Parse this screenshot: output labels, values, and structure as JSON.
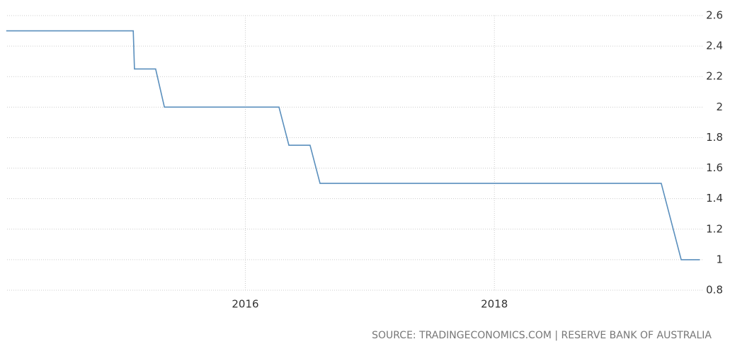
{
  "chart_data": {
    "type": "line",
    "source": "SOURCE: TRADINGECONOMICS.COM | RESERVE BANK OF AUSTRALIA",
    "x": [
      2014.08,
      2015.1,
      2015.11,
      2015.28,
      2015.35,
      2016.27,
      2016.35,
      2016.52,
      2016.6,
      2019.34,
      2019.5,
      2019.65
    ],
    "series": [
      {
        "color": "#5a8fbd",
        "values": [
          2.5,
          2.5,
          2.25,
          2.25,
          2.0,
          2.0,
          1.75,
          1.75,
          1.5,
          1.5,
          1.0,
          1.0
        ]
      }
    ],
    "xlim": [
      2014.03,
      2020.0
    ],
    "xticks": [
      2016,
      2018
    ],
    "ylim": [
      0.8,
      2.6
    ],
    "yticks": [
      0.8,
      1,
      1.2,
      1.4,
      1.6,
      1.8,
      2,
      2.2,
      2.4,
      2.6
    ],
    "grid": true
  }
}
